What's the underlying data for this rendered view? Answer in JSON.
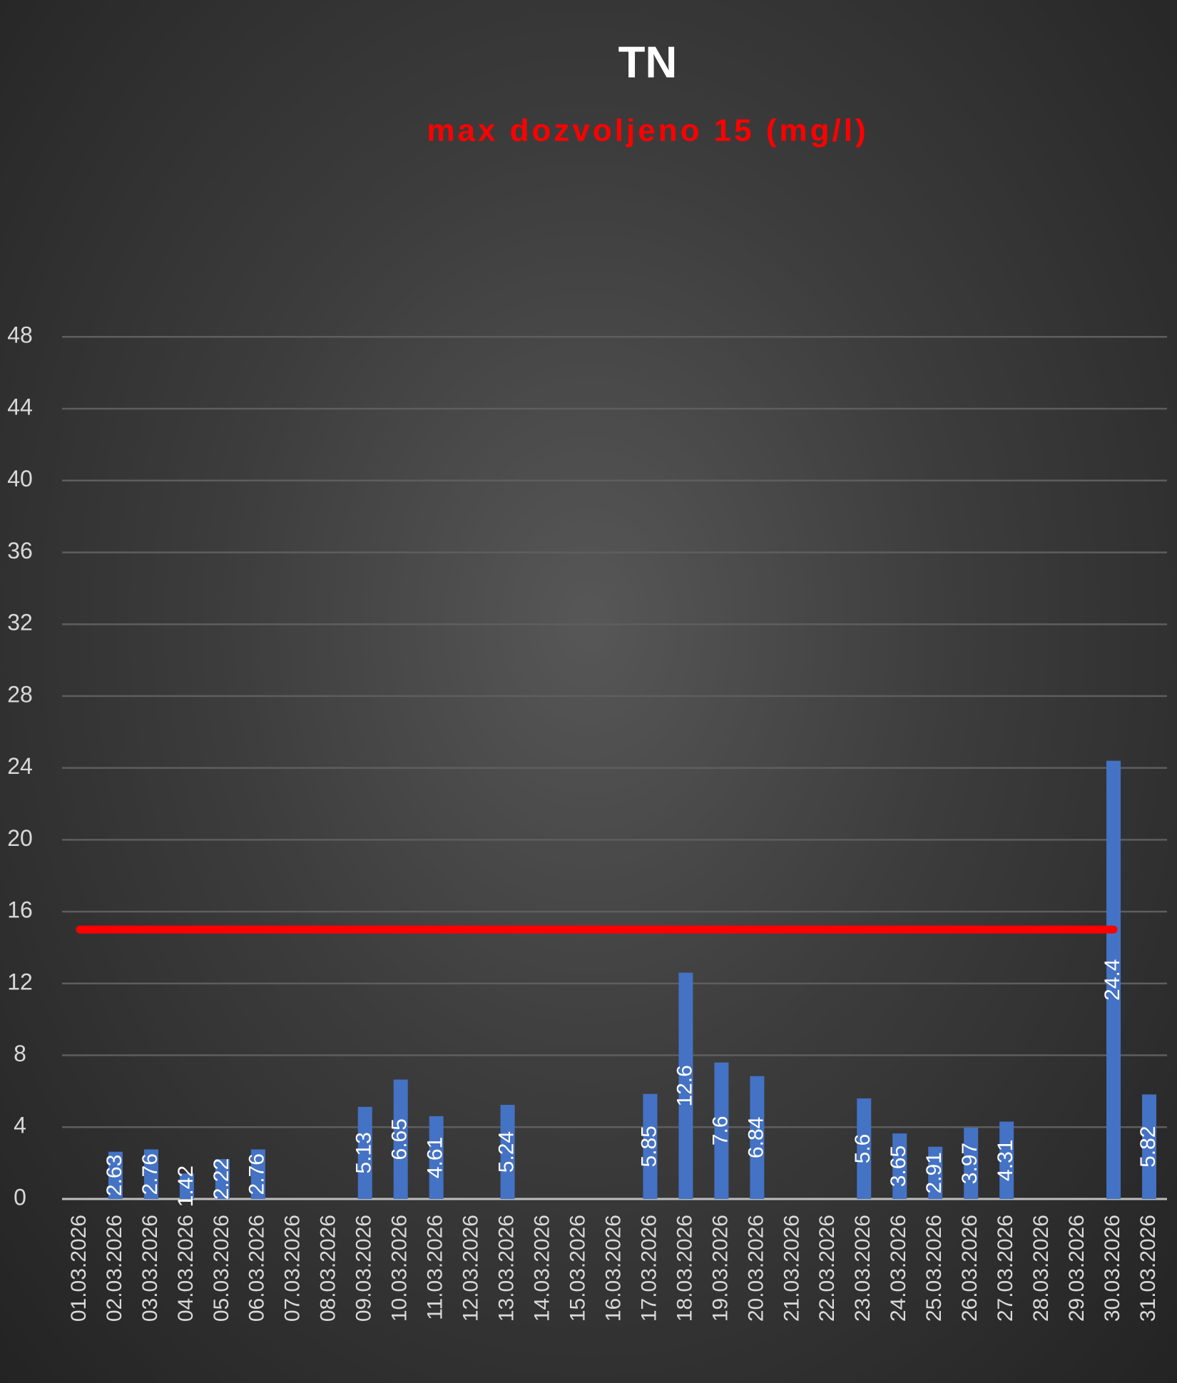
{
  "chart_data": {
    "type": "bar",
    "title": "TN",
    "subtitle": "max dozvoljeno 15 (mg/l)",
    "categories": [
      "01.03.2026",
      "02.03.2026",
      "03.03.2026",
      "04.03.2026",
      "05.03.2026",
      "06.03.2026",
      "07.03.2026",
      "08.03.2026",
      "09.03.2026",
      "10.03.2026",
      "11.03.2026",
      "12.03.2026",
      "13.03.2026",
      "14.03.2026",
      "15.03.2026",
      "16.03.2026",
      "17.03.2026",
      "18.03.2026",
      "19.03.2026",
      "20.03.2026",
      "21.03.2026",
      "22.03.2026",
      "23.03.2026",
      "24.03.2026",
      "25.03.2026",
      "26.03.2026",
      "27.03.2026",
      "28.03.2026",
      "29.03.2026",
      "30.03.2026",
      "31.03.2026"
    ],
    "series": [
      {
        "type": "bar",
        "color": "#4472c4",
        "values": [
          null,
          2.63,
          2.76,
          1.42,
          2.22,
          2.76,
          null,
          null,
          5.13,
          6.65,
          4.61,
          null,
          5.24,
          null,
          null,
          null,
          5.85,
          12.6,
          7.6,
          6.84,
          null,
          null,
          5.6,
          3.65,
          2.91,
          3.97,
          4.31,
          null,
          null,
          24.4,
          5.82
        ]
      },
      {
        "type": "line",
        "color": "#ff0000",
        "values": [
          15,
          15,
          15,
          15,
          15,
          15,
          15,
          15,
          15,
          15,
          15,
          15,
          15,
          15,
          15,
          15,
          15,
          15,
          15,
          15,
          15,
          15,
          15,
          15,
          15,
          15,
          15,
          15,
          15,
          15,
          null
        ]
      }
    ],
    "ylim": [
      0,
      49.6
    ],
    "yticks": [
      0,
      4,
      8,
      12,
      16,
      20,
      24,
      28,
      32,
      36,
      40,
      44,
      48
    ],
    "grid": true
  }
}
